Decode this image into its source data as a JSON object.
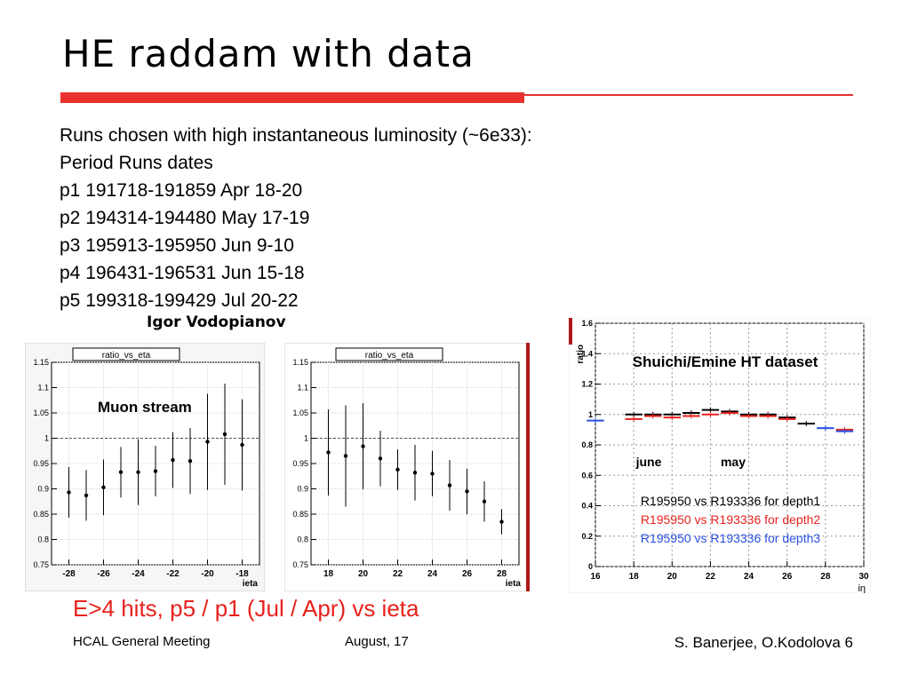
{
  "slide": {
    "title": "HE raddam with data",
    "lines": [
      "Runs chosen with high instantaneous luminosity (~6e33):",
      "Period Runs dates",
      "p1 191718-191859 Apr 18-20",
      "p2 194314-194480 May 17-19",
      "p3 195913-195950 Jun 9-10",
      "p4 196431-196531 Jun 15-18",
      "p5 199318-199429 Jul 20-22"
    ],
    "credit_left": "Igor Vodopianov",
    "caption": "E>4 hits, p5 / p1 (Jul / Apr) vs ieta",
    "footer_left": "HCAL General Meeting",
    "footer_center": "August, 17",
    "footer_right": "S. Banerjee, O.Kodolova  6",
    "accent_color": "#e8322f"
  },
  "chart_data": [
    {
      "type": "scatter",
      "title": "ratio_vs_eta",
      "annotation": "Muon stream",
      "xlabel": "ieta",
      "xlim": [
        -29,
        -17
      ],
      "ylim": [
        0.75,
        1.15
      ],
      "xticks": [
        -28,
        -26,
        -24,
        -22,
        -20,
        -18
      ],
      "yticks": [
        0.75,
        0.8,
        0.85,
        0.9,
        0.95,
        1,
        1.05,
        1.1,
        1.15
      ],
      "reference_line": 1.0,
      "points": [
        {
          "x": -28,
          "y": 0.893,
          "err": 0.05
        },
        {
          "x": -27,
          "y": 0.887,
          "err": 0.05
        },
        {
          "x": -26,
          "y": 0.903,
          "err": 0.055
        },
        {
          "x": -25,
          "y": 0.933,
          "err": 0.05
        },
        {
          "x": -24,
          "y": 0.933,
          "err": 0.065
        },
        {
          "x": -23,
          "y": 0.935,
          "err": 0.05
        },
        {
          "x": -22,
          "y": 0.957,
          "err": 0.055
        },
        {
          "x": -21,
          "y": 0.955,
          "err": 0.065
        },
        {
          "x": -20,
          "y": 0.993,
          "err": 0.095
        },
        {
          "x": -19,
          "y": 1.008,
          "err": 0.1
        },
        {
          "x": -18,
          "y": 0.987,
          "err": 0.09
        }
      ]
    },
    {
      "type": "scatter",
      "title": "ratio_vs_eta",
      "xlabel": "ieta",
      "xlim": [
        17,
        29
      ],
      "ylim": [
        0.75,
        1.15
      ],
      "xticks": [
        18,
        20,
        22,
        24,
        26,
        28
      ],
      "yticks": [
        0.75,
        0.8,
        0.85,
        0.9,
        0.95,
        1,
        1.05,
        1.1,
        1.15
      ],
      "reference_line": 1.0,
      "points": [
        {
          "x": 18,
          "y": 0.972,
          "err": 0.085
        },
        {
          "x": 19,
          "y": 0.965,
          "err": 0.1
        },
        {
          "x": 20,
          "y": 0.984,
          "err": 0.085
        },
        {
          "x": 21,
          "y": 0.96,
          "err": 0.055
        },
        {
          "x": 22,
          "y": 0.938,
          "err": 0.04
        },
        {
          "x": 23,
          "y": 0.932,
          "err": 0.055
        },
        {
          "x": 24,
          "y": 0.93,
          "err": 0.045
        },
        {
          "x": 25,
          "y": 0.907,
          "err": 0.05
        },
        {
          "x": 26,
          "y": 0.895,
          "err": 0.045
        },
        {
          "x": 27,
          "y": 0.875,
          "err": 0.04
        },
        {
          "x": 28,
          "y": 0.835,
          "err": 0.025
        }
      ]
    },
    {
      "type": "scatter",
      "title": "Shuichi/Emine HT dataset",
      "ylabel": "ratio",
      "xlabel": "iη",
      "xlim": [
        16,
        30
      ],
      "ylim": [
        0,
        1.6
      ],
      "xticks": [
        16,
        18,
        20,
        22,
        24,
        26,
        28,
        30
      ],
      "yticks": [
        0,
        0.2,
        0.4,
        0.6,
        0.8,
        1,
        1.2,
        1.4,
        1.6
      ],
      "annotations": [
        "june",
        "may"
      ],
      "legend": [
        "R195950 vs R193336 for depth1",
        "R195950 vs R193336 for depth2",
        "R195950 vs R193336 for depth3"
      ],
      "series": [
        {
          "name": "R195950 vs R193336 for depth1",
          "color": "#000000",
          "x": [
            18,
            19,
            20,
            21,
            22,
            23,
            24,
            25,
            26,
            27
          ],
          "y": [
            1.0,
            1.0,
            1.0,
            1.01,
            1.03,
            1.02,
            1.0,
            1.0,
            0.98,
            0.94
          ]
        },
        {
          "name": "R195950 vs R193336 for depth2",
          "color": "#e8221d",
          "x": [
            18,
            19,
            20,
            21,
            22,
            23,
            24,
            25,
            26,
            29
          ],
          "y": [
            0.97,
            0.99,
            0.98,
            0.99,
            1.0,
            1.01,
            0.99,
            0.99,
            0.97,
            0.9
          ]
        },
        {
          "name": "R195950 vs R193336 for depth3",
          "color": "#2a4fe0",
          "x": [
            16,
            28,
            29
          ],
          "y": [
            0.96,
            0.91,
            0.89
          ]
        }
      ]
    }
  ]
}
